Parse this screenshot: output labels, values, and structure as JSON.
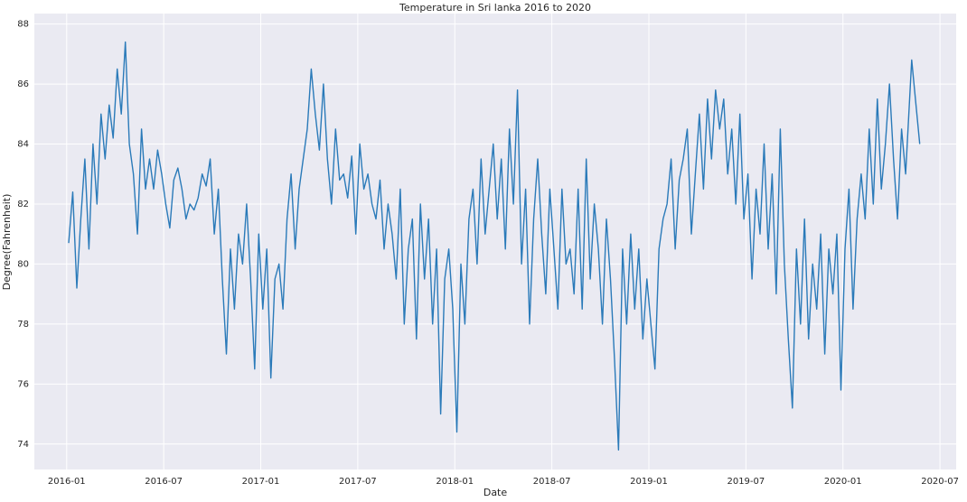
{
  "chart_data": {
    "type": "line",
    "title": "Temperature in Sri lanka 2016 to 2020",
    "xlabel": "Date",
    "ylabel": "Degree(Fahrenheit)",
    "x": [
      "2016-01",
      "2016-01",
      "2016-01",
      "2016-01",
      "2016-02",
      "2016-02",
      "2016-02",
      "2016-02",
      "2016-03",
      "2016-03",
      "2016-03",
      "2016-03",
      "2016-04",
      "2016-04",
      "2016-04",
      "2016-04",
      "2016-05",
      "2016-05",
      "2016-05",
      "2016-05",
      "2016-06",
      "2016-06",
      "2016-06",
      "2016-06",
      "2016-07",
      "2016-07",
      "2016-07",
      "2016-07",
      "2016-08",
      "2016-08",
      "2016-08",
      "2016-08",
      "2016-09",
      "2016-09",
      "2016-09",
      "2016-09",
      "2016-10",
      "2016-10",
      "2016-10",
      "2016-10",
      "2016-11",
      "2016-11",
      "2016-11",
      "2016-11",
      "2016-12",
      "2016-12",
      "2016-12",
      "2016-12",
      "2017-01",
      "2017-01",
      "2017-01",
      "2017-01",
      "2017-02",
      "2017-02",
      "2017-02",
      "2017-02",
      "2017-03",
      "2017-03",
      "2017-03",
      "2017-03",
      "2017-04",
      "2017-04",
      "2017-04",
      "2017-04",
      "2017-05",
      "2017-05",
      "2017-05",
      "2017-05",
      "2017-06",
      "2017-06",
      "2017-06",
      "2017-06",
      "2017-07",
      "2017-07",
      "2017-07",
      "2017-07",
      "2017-08",
      "2017-08",
      "2017-08",
      "2017-08",
      "2017-09",
      "2017-09",
      "2017-09",
      "2017-09",
      "2017-10",
      "2017-10",
      "2017-10",
      "2017-10",
      "2017-11",
      "2017-11",
      "2017-11",
      "2017-11",
      "2017-12",
      "2017-12",
      "2017-12",
      "2017-12",
      "2018-01",
      "2018-01",
      "2018-01",
      "2018-01",
      "2018-02",
      "2018-02",
      "2018-02",
      "2018-02",
      "2018-03",
      "2018-03",
      "2018-03",
      "2018-03",
      "2018-04",
      "2018-04",
      "2018-04",
      "2018-04",
      "2018-05",
      "2018-05",
      "2018-05",
      "2018-05",
      "2018-06",
      "2018-06",
      "2018-06",
      "2018-06",
      "2018-07",
      "2018-07",
      "2018-07",
      "2018-07",
      "2018-08",
      "2018-08",
      "2018-08",
      "2018-08",
      "2018-09",
      "2018-09",
      "2018-09",
      "2018-09",
      "2018-10",
      "2018-10",
      "2018-10",
      "2018-10",
      "2018-11",
      "2018-11",
      "2018-11",
      "2018-11",
      "2018-12",
      "2018-12",
      "2018-12",
      "2018-12",
      "2019-01",
      "2019-01",
      "2019-01",
      "2019-01",
      "2019-02",
      "2019-02",
      "2019-02",
      "2019-02",
      "2019-03",
      "2019-03",
      "2019-03",
      "2019-03",
      "2019-04",
      "2019-04",
      "2019-04",
      "2019-04",
      "2019-05",
      "2019-05",
      "2019-05",
      "2019-05",
      "2019-06",
      "2019-06",
      "2019-06",
      "2019-06",
      "2019-07",
      "2019-07",
      "2019-07",
      "2019-07",
      "2019-08",
      "2019-08",
      "2019-08",
      "2019-08",
      "2019-09",
      "2019-09",
      "2019-09",
      "2019-09",
      "2019-10",
      "2019-10",
      "2019-10",
      "2019-10",
      "2019-11",
      "2019-11",
      "2019-11",
      "2019-11",
      "2019-12",
      "2019-12",
      "2019-12",
      "2019-12",
      "2020-01",
      "2020-01",
      "2020-01",
      "2020-01",
      "2020-02",
      "2020-02",
      "2020-02",
      "2020-02",
      "2020-03",
      "2020-03",
      "2020-03",
      "2020-03",
      "2020-04",
      "2020-04",
      "2020-04",
      "2020-04",
      "2020-05",
      "2020-05"
    ],
    "series": [
      {
        "color": "#2a7ab9",
        "values": [
          80.7,
          82.4,
          79.2,
          81.5,
          83.5,
          80.5,
          84.0,
          82.0,
          85.0,
          83.5,
          85.3,
          84.2,
          86.5,
          85.0,
          87.4,
          84.0,
          83.0,
          81.0,
          84.5,
          82.5,
          83.5,
          82.5,
          83.8,
          83.0,
          82.0,
          81.2,
          82.8,
          83.2,
          82.5,
          81.5,
          82.0,
          81.8,
          82.2,
          83.0,
          82.6,
          83.5,
          81.0,
          82.5,
          79.5,
          77.0,
          80.5,
          78.5,
          81.0,
          80.0,
          82.0,
          79.5,
          76.5,
          81.0,
          78.5,
          80.5,
          76.2,
          79.5,
          80.0,
          78.5,
          81.5,
          83.0,
          80.5,
          82.5,
          83.5,
          84.5,
          86.5,
          85.0,
          83.8,
          86.0,
          83.5,
          82.0,
          84.5,
          82.8,
          83.0,
          82.2,
          83.6,
          81.0,
          84.0,
          82.5,
          83.0,
          82.0,
          81.5,
          82.8,
          80.5,
          82.0,
          81.0,
          79.5,
          82.5,
          78.0,
          80.5,
          81.5,
          77.5,
          82.0,
          79.5,
          81.5,
          78.0,
          80.5,
          75.0,
          79.5,
          80.5,
          78.5,
          74.4,
          80.0,
          78.0,
          81.5,
          82.5,
          80.0,
          83.5,
          81.0,
          82.5,
          84.0,
          81.5,
          83.5,
          80.5,
          84.5,
          82.0,
          85.8,
          80.0,
          82.5,
          78.0,
          81.5,
          83.5,
          81.0,
          79.0,
          82.5,
          80.5,
          78.5,
          82.5,
          80.0,
          80.5,
          79.0,
          82.5,
          78.5,
          83.5,
          79.5,
          82.0,
          80.5,
          78.0,
          81.5,
          79.5,
          76.8,
          73.8,
          80.5,
          78.0,
          81.0,
          78.5,
          80.5,
          77.5,
          79.5,
          78.0,
          76.5,
          80.5,
          81.5,
          82.0,
          83.5,
          80.5,
          82.8,
          83.5,
          84.5,
          81.0,
          83.0,
          85.0,
          82.5,
          85.5,
          83.5,
          85.8,
          84.5,
          85.5,
          83.0,
          84.5,
          82.0,
          85.0,
          81.5,
          83.0,
          79.5,
          82.5,
          81.0,
          84.0,
          80.5,
          83.0,
          79.0,
          84.5,
          80.0,
          77.5,
          75.2,
          80.5,
          78.0,
          81.5,
          77.5,
          80.0,
          78.5,
          81.0,
          77.0,
          80.5,
          79.0,
          81.0,
          75.8,
          80.5,
          82.5,
          78.5,
          81.5,
          83.0,
          81.5,
          84.5,
          82.0,
          85.5,
          82.5,
          84.0,
          86.0,
          83.5,
          81.5,
          84.5,
          83.0,
          86.8,
          84.0
        ]
      }
    ],
    "xlim": [
      "2015-11",
      "2020-08"
    ],
    "xticks": [
      "2016-01",
      "2016-07",
      "2017-01",
      "2017-07",
      "2018-01",
      "2018-07",
      "2019-01",
      "2019-07",
      "2020-01",
      "2020-07"
    ],
    "ylim": [
      73.15,
      88.35
    ],
    "yticks": [
      74,
      76,
      78,
      80,
      82,
      84,
      86,
      88
    ],
    "grid": true
  }
}
